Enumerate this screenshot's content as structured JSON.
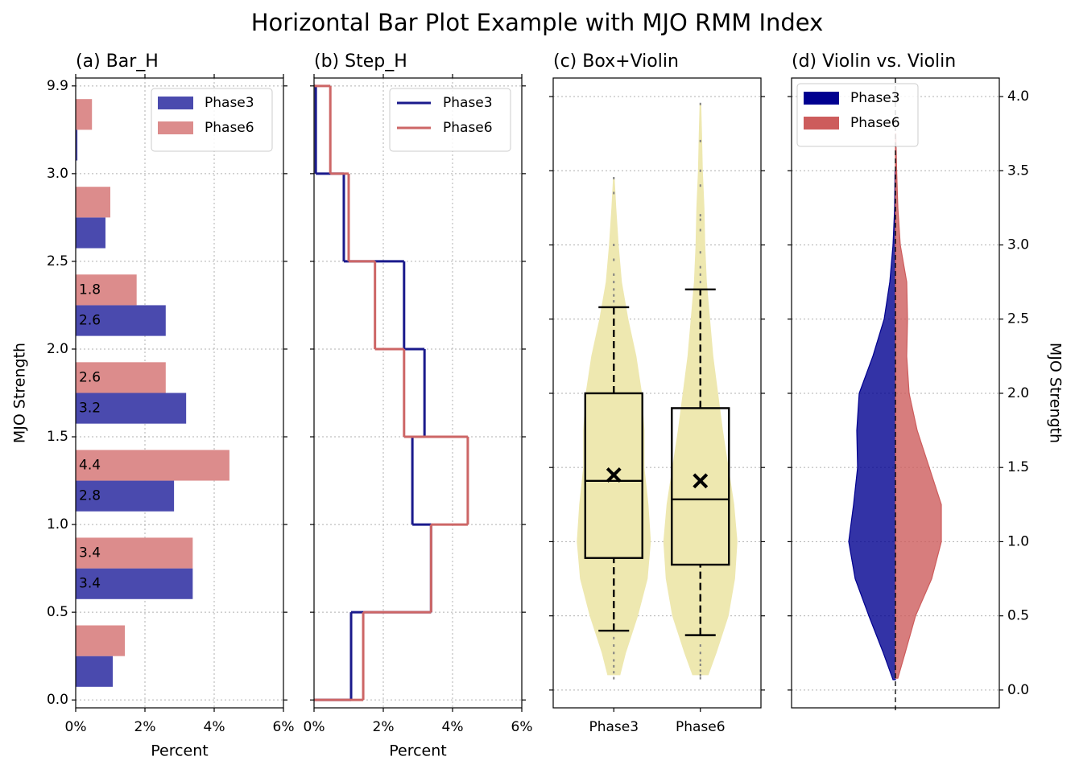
{
  "title": "Horizontal Bar Plot Example with MJO RMM Index",
  "chart_data": [
    {
      "type": "bar",
      "title": "(a) Bar_H",
      "bin_edges": [
        "0.0",
        "0.5",
        "1.0",
        "1.5",
        "2.0",
        "2.5",
        "3.0",
        "9.9"
      ],
      "series": [
        {
          "name": "Phase3",
          "color": "#4a4aae",
          "values": [
            1.07,
            3.38,
            2.84,
            3.19,
            2.6,
            0.86,
            0.05
          ],
          "value_labels": [
            null,
            "3.4",
            "2.8",
            "3.2",
            "2.6",
            null,
            null
          ]
        },
        {
          "name": "Phase6",
          "color": "#dc8c8c",
          "values": [
            1.42,
            3.38,
            4.44,
            2.6,
            1.76,
            1.0,
            0.47
          ],
          "value_labels": [
            null,
            "3.4",
            "4.4",
            "2.6",
            "1.8",
            null,
            null
          ]
        }
      ],
      "xlim": [
        0,
        6
      ],
      "xticks": [
        {
          "value": 0,
          "label": "0%"
        },
        {
          "value": 2,
          "label": "2%"
        },
        {
          "value": 4,
          "label": "4%"
        },
        {
          "value": 6,
          "label": "6%"
        }
      ],
      "xlabel": "Percent",
      "ylabel": "MJO Strength",
      "grid": true,
      "legend": "upper right"
    },
    {
      "type": "step",
      "title": "(b) Step_H",
      "series": [
        {
          "name": "Phase3",
          "color": "#1a1a8c",
          "values": [
            1.07,
            3.38,
            2.84,
            3.19,
            2.6,
            0.86,
            0.05
          ]
        },
        {
          "name": "Phase6",
          "color": "#cd6666",
          "values": [
            1.42,
            3.38,
            4.44,
            2.6,
            1.76,
            1.0,
            0.47
          ]
        }
      ],
      "xlim": [
        0,
        6
      ],
      "xticks": [
        {
          "value": 0,
          "label": "0%"
        },
        {
          "value": 2,
          "label": "2%"
        },
        {
          "value": 4,
          "label": "4%"
        },
        {
          "value": 6,
          "label": "6%"
        }
      ],
      "xlabel": "Percent",
      "grid": true,
      "legend": "upper right"
    },
    {
      "type": "box_violin",
      "title": "(c) Box+Violin",
      "categories": [
        "Phase3",
        "Phase6"
      ],
      "violin_color": "#eee8b0",
      "series": [
        {
          "whislo": 0.4,
          "q1": 0.89,
          "med": 1.41,
          "q3": 2.0,
          "whishi": 2.58,
          "mean": 1.45,
          "fliers": [
            0.08,
            0.12,
            0.16,
            0.2,
            0.25,
            0.3,
            0.35,
            2.62,
            2.66,
            2.7,
            2.75,
            2.8,
            2.9,
            3.0,
            3.35,
            3.45
          ],
          "violin_y": [
            0.1,
            0.25,
            0.5,
            0.75,
            1.0,
            1.25,
            1.5,
            1.75,
            2.0,
            2.25,
            2.5,
            2.75,
            3.0,
            3.25,
            3.45
          ],
          "violin_density": [
            8,
            15,
            30,
            42,
            46,
            43,
            38,
            38,
            35,
            28,
            18,
            10,
            6,
            3,
            1
          ]
        },
        {
          "whislo": 0.37,
          "q1": 0.845,
          "med": 1.285,
          "q3": 1.9,
          "whishi": 2.7,
          "mean": 1.41,
          "fliers": [
            0.08,
            0.1,
            0.13,
            0.17,
            0.2,
            0.25,
            0.3,
            2.75,
            2.8,
            2.85,
            2.95,
            3.1,
            3.17,
            3.2,
            3.4,
            3.5,
            3.7,
            3.95
          ],
          "violin_y": [
            0.1,
            0.25,
            0.5,
            0.75,
            1.0,
            1.25,
            1.5,
            1.75,
            2.0,
            2.25,
            2.5,
            2.75,
            3.0,
            3.25,
            3.5,
            3.75,
            3.95
          ],
          "violin_density": [
            10,
            20,
            35,
            43,
            46,
            42,
            35,
            28,
            22,
            16,
            12,
            8,
            6,
            5,
            3,
            2,
            1
          ]
        }
      ],
      "xlim": [
        0.3,
        2.7
      ],
      "ylim": [
        -0.12,
        4.125
      ],
      "yticks": [
        0,
        0.5,
        1,
        1.5,
        2,
        2.5,
        3,
        3.5,
        4
      ],
      "grid": true
    },
    {
      "type": "split_violin",
      "title": "(d) Violin vs. Violin",
      "series": [
        {
          "name": "Phase3",
          "color": "#000090",
          "violin_y": [
            0.07,
            0.25,
            0.5,
            0.75,
            1.0,
            1.25,
            1.5,
            1.75,
            2.0,
            2.25,
            2.5,
            2.75,
            3.0,
            3.25,
            3.5
          ],
          "violin_density": [
            3,
            15,
            33,
            50,
            58,
            52,
            47,
            48,
            45,
            28,
            14,
            7,
            3,
            1,
            0.5
          ]
        },
        {
          "name": "Phase6",
          "color": "#cd5c5c",
          "violin_y": [
            0.08,
            0.25,
            0.5,
            0.75,
            1.0,
            1.25,
            1.5,
            1.75,
            2.0,
            2.25,
            2.5,
            2.75,
            3.0,
            3.25,
            3.5,
            3.75
          ],
          "violin_density": [
            3,
            12,
            25,
            45,
            57,
            57,
            42,
            27,
            17,
            14,
            15,
            14,
            6,
            3,
            1.5,
            0.5
          ]
        }
      ],
      "ylim": [
        -0.12,
        4.125
      ],
      "yticks": [
        {
          "value": 0,
          "label": "0.0"
        },
        0.5,
        {
          "value": 1,
          "label": "1.0"
        },
        1.5,
        {
          "value": 2,
          "label": "2.0"
        },
        2.5,
        {
          "value": 3,
          "label": "3.0"
        },
        3.5,
        {
          "value": 4,
          "label": "4.0"
        }
      ],
      "ylabel": "MJO Strength",
      "grid": true,
      "legend": "upper left"
    }
  ]
}
